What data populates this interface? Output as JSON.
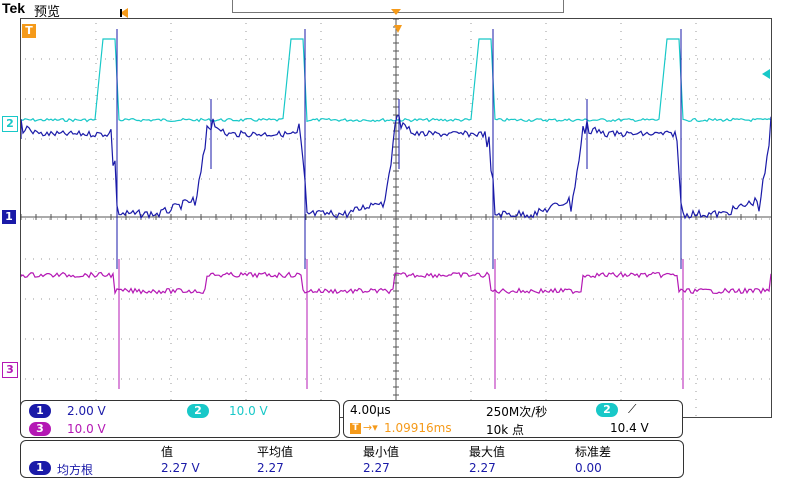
{
  "header": {
    "brand": "Tek",
    "mode": "预览"
  },
  "channels": {
    "ch1": {
      "number": "1",
      "scale": "2.00 V",
      "color": "#1a1aa8"
    },
    "ch2": {
      "number": "2",
      "scale": "10.0 V",
      "color": "#18c8c8"
    },
    "ch3": {
      "number": "3",
      "scale": "10.0 V",
      "color": "#b418b4"
    }
  },
  "trigger": {
    "marker": "T",
    "accent_color": "#f59a1a"
  },
  "timebase": {
    "time_per_div": "4.00µs",
    "sample_rate": "250M次/秒",
    "trigger_position": "1.09916ms",
    "record_length": "10k 点",
    "trigger_source": "2",
    "trigger_slope": "⟋",
    "trigger_level": "10.4 V"
  },
  "measurement": {
    "headers": [
      "值",
      "平均值",
      "最小值",
      "最大值",
      "标准差"
    ],
    "channel": "1",
    "type": "均方根",
    "values": [
      "2.27 V",
      "2.27",
      "2.27",
      "2.27",
      "0.00"
    ]
  }
}
